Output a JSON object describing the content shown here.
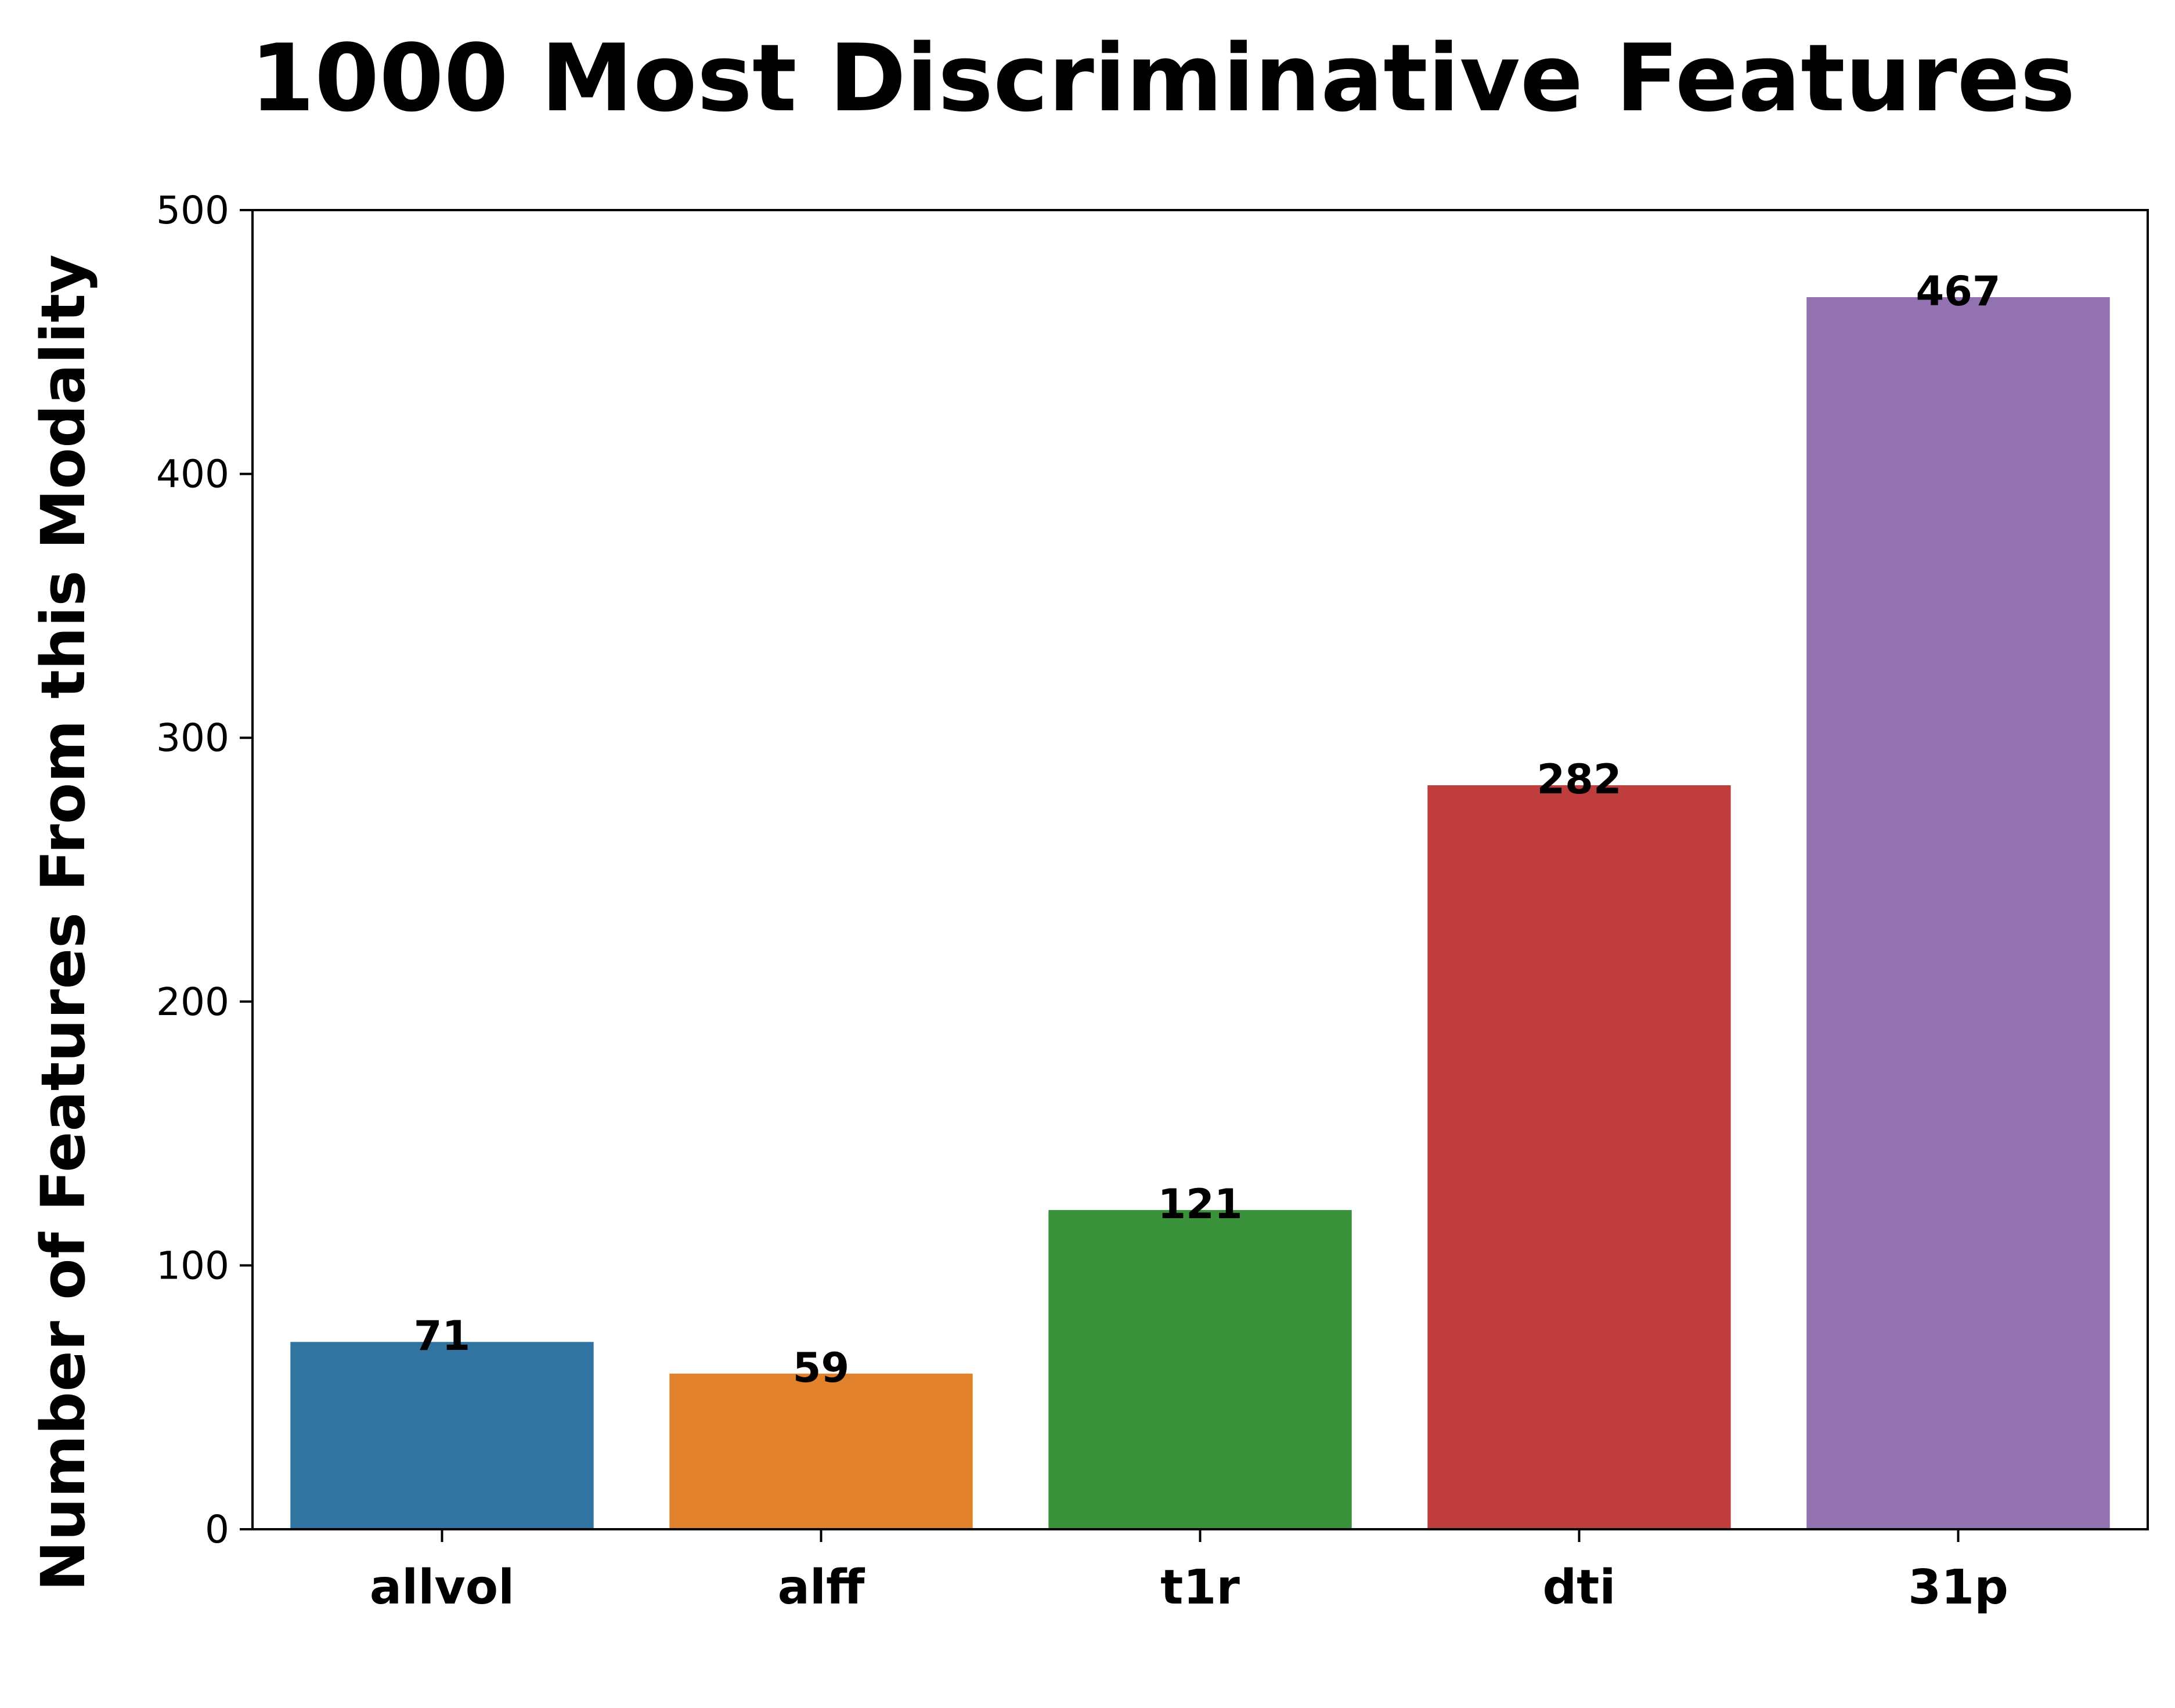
{
  "chart_data": {
    "type": "bar",
    "title": "1000 Most Discriminative Features",
    "xlabel": "",
    "ylabel": "Number of Features From this Modality",
    "categories": [
      "allvol",
      "alff",
      "t1r",
      "dti",
      "31p"
    ],
    "values": [
      71,
      59,
      121,
      282,
      467
    ],
    "data_labels": [
      "71",
      "59",
      "121",
      "282",
      "467"
    ],
    "colors": [
      "#3274a1",
      "#e1812c",
      "#3a923a",
      "#c03d3e",
      "#9372b2"
    ],
    "ylim": [
      0,
      500
    ],
    "yticks": [
      0,
      100,
      200,
      300,
      400,
      500
    ],
    "grid": false,
    "legend": "none"
  }
}
